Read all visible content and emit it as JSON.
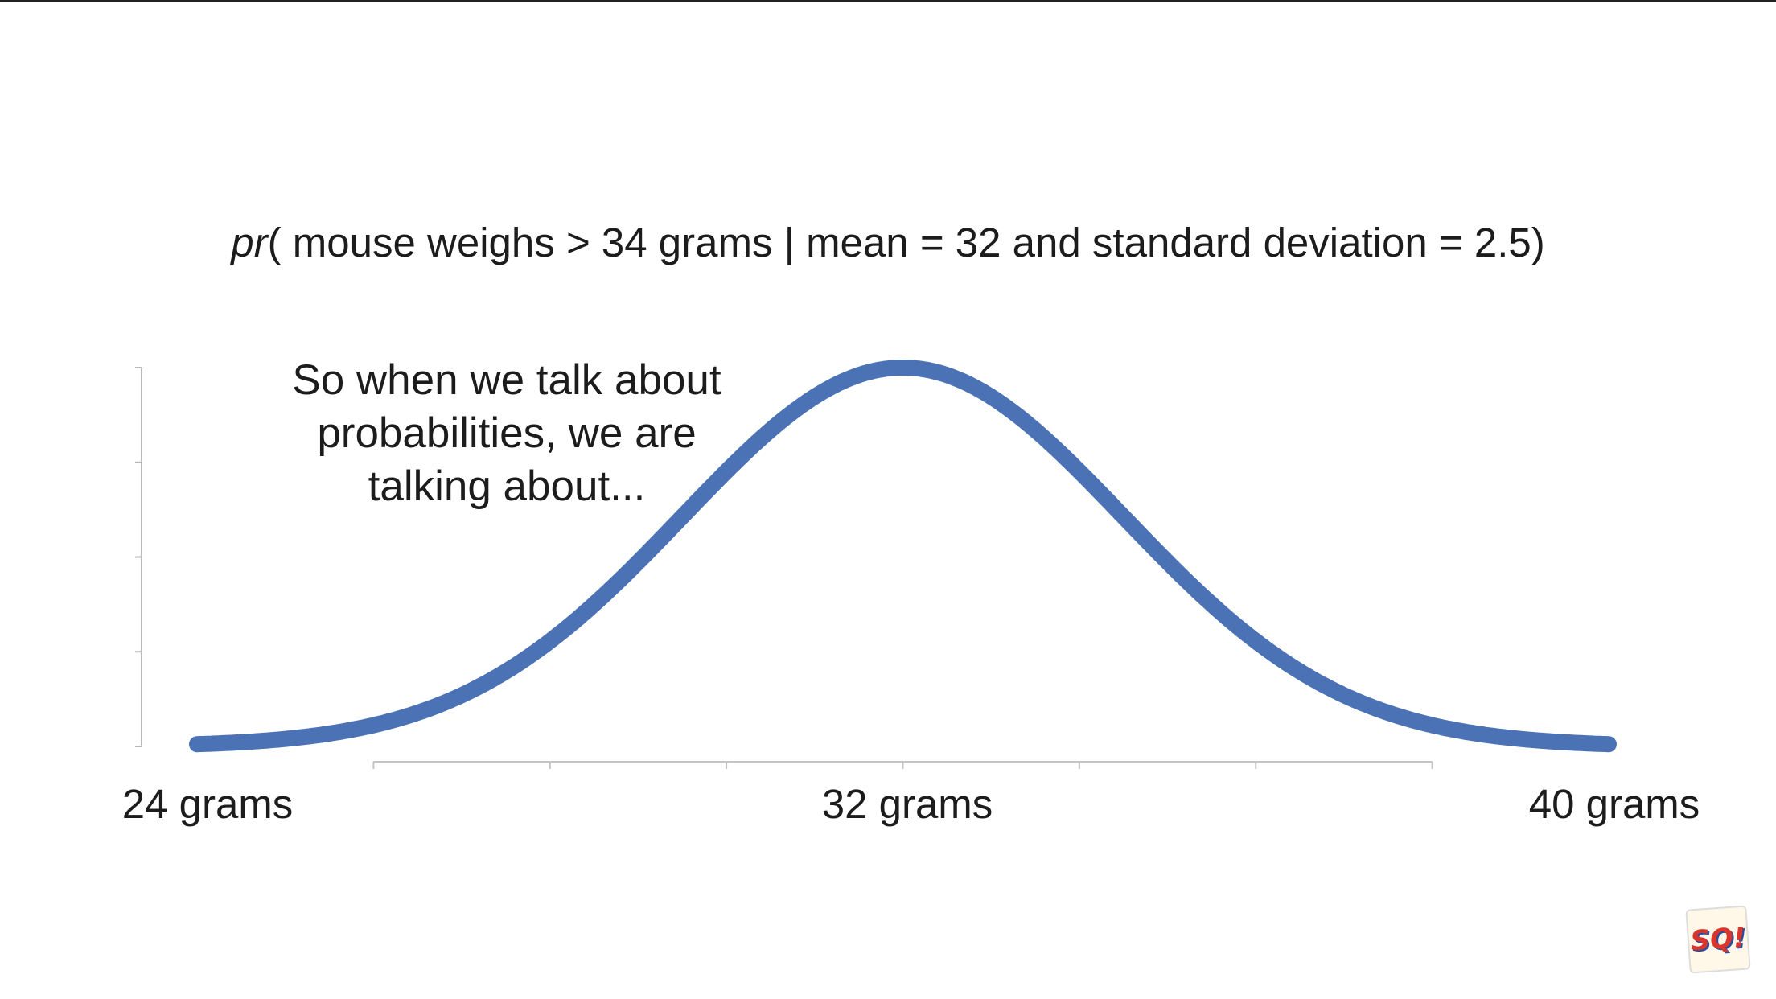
{
  "title": {
    "prefix": "pr",
    "text": "( mouse weighs > 34 grams | mean = 32 and standard deviation = 2.5)"
  },
  "annotation": {
    "lines": [
      "So when we talk about",
      "probabilities, we are",
      "talking about..."
    ]
  },
  "chart_data": {
    "type": "line",
    "series": [
      {
        "distribution": "normal",
        "mean": 32,
        "sd": 2.5,
        "color": "#4a72b5"
      }
    ],
    "xlim": [
      24,
      40
    ],
    "x_tick_labels": [
      {
        "x": 24,
        "label": "24 grams"
      },
      {
        "x": 32,
        "label": "32 grams"
      },
      {
        "x": 40,
        "label": "40 grams"
      }
    ],
    "x_minor_ticks": [
      26,
      28,
      30,
      32,
      34,
      36,
      38
    ],
    "y_axis_ticks": 5,
    "grid": false
  },
  "logo": {
    "text": "SQ!"
  }
}
